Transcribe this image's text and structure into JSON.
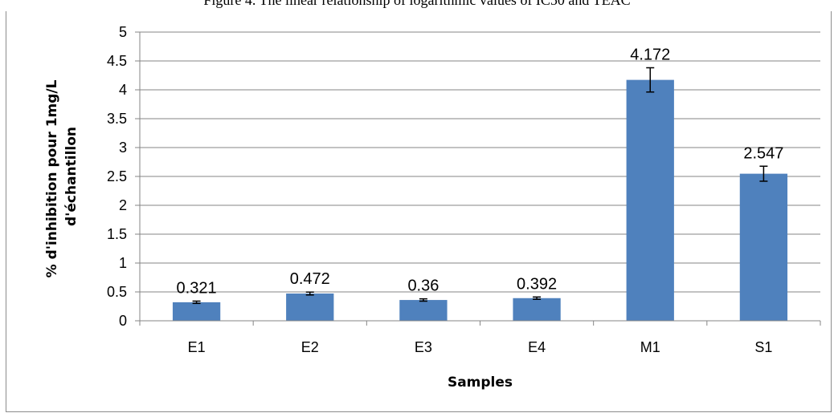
{
  "caption": "Figure 4. The linear relationship of logarithmic values of IC50 and TEAC",
  "chart_data": {
    "type": "bar",
    "title": "",
    "xlabel": "Samples",
    "ylabel_lines": [
      "% d'inhibition pour 1mg/L",
      "d'échantillon"
    ],
    "categories": [
      "E1",
      "E2",
      "E3",
      "E4",
      "M1",
      "S1"
    ],
    "values": [
      0.321,
      0.472,
      0.36,
      0.392,
      4.172,
      2.547
    ],
    "value_labels": [
      "0.321",
      "0.472",
      "0.36",
      "0.392",
      "4.172",
      "2.547"
    ],
    "error": [
      0.02,
      0.025,
      0.02,
      0.02,
      0.21,
      0.13
    ],
    "ylim": [
      0,
      5
    ],
    "yticks": [
      "0",
      "0.5",
      "1",
      "1.5",
      "2",
      "2.5",
      "3",
      "3.5",
      "4",
      "4.5",
      "5"
    ],
    "grid": true,
    "legend": "none",
    "bar_color": "#4f81bd",
    "grid_color": "#868686"
  }
}
